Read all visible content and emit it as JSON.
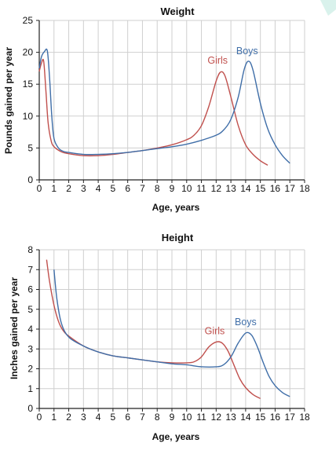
{
  "colors": {
    "girls": "#c0504d",
    "boys": "#3f6ea8",
    "grid": "#cfcfcf",
    "axis": "#222222",
    "accent_corner": "#d9f2ec"
  },
  "chart_data": [
    {
      "type": "line",
      "title": "Weight",
      "xlabel": "Age, years",
      "ylabel": "Pounds gained per year",
      "xlim": [
        0,
        18
      ],
      "ylim": [
        0,
        25
      ],
      "x_ticks": [
        "0",
        "1",
        "2",
        "3",
        "4",
        "5",
        "6",
        "7",
        "8",
        "9",
        "10",
        "11",
        "12",
        "13",
        "14",
        "15",
        "16",
        "17",
        "18"
      ],
      "y_ticks": [
        "0",
        "5",
        "10",
        "15",
        "20",
        "25"
      ],
      "y_tick_values": [
        0,
        5,
        10,
        15,
        20,
        25
      ],
      "grid": true,
      "series": [
        {
          "name": "Girls",
          "color": "#c0504d",
          "points": [
            [
              0,
              17
            ],
            [
              0.15,
              18.3
            ],
            [
              0.3,
              18.6
            ],
            [
              0.45,
              14
            ],
            [
              0.6,
              9
            ],
            [
              0.8,
              6.2
            ],
            [
              1,
              5.2
            ],
            [
              1.5,
              4.4
            ],
            [
              2,
              4.1
            ],
            [
              3,
              3.8
            ],
            [
              4,
              3.8
            ],
            [
              5,
              4
            ],
            [
              6,
              4.3
            ],
            [
              7,
              4.6
            ],
            [
              8,
              5
            ],
            [
              9,
              5.5
            ],
            [
              10,
              6.3
            ],
            [
              10.5,
              7
            ],
            [
              11,
              8.5
            ],
            [
              11.5,
              11.5
            ],
            [
              12,
              15.5
            ],
            [
              12.3,
              16.9
            ],
            [
              12.6,
              16.3
            ],
            [
              13,
              13
            ],
            [
              13.5,
              8.5
            ],
            [
              14,
              5.5
            ],
            [
              14.5,
              4
            ],
            [
              15,
              3
            ],
            [
              15.5,
              2.3
            ]
          ]
        },
        {
          "name": "Boys",
          "color": "#3f6ea8",
          "points": [
            [
              0,
              17.5
            ],
            [
              0.15,
              19.3
            ],
            [
              0.35,
              20.1
            ],
            [
              0.55,
              20.2
            ],
            [
              0.7,
              16
            ],
            [
              0.85,
              10
            ],
            [
              1,
              6.5
            ],
            [
              1.3,
              5
            ],
            [
              1.6,
              4.5
            ],
            [
              2,
              4.3
            ],
            [
              3,
              4
            ],
            [
              4,
              4
            ],
            [
              5,
              4.1
            ],
            [
              6,
              4.3
            ],
            [
              7,
              4.6
            ],
            [
              8,
              4.9
            ],
            [
              9,
              5.2
            ],
            [
              10,
              5.6
            ],
            [
              11,
              6.2
            ],
            [
              12,
              7
            ],
            [
              12.5,
              7.8
            ],
            [
              13,
              9.5
            ],
            [
              13.5,
              13
            ],
            [
              13.9,
              17.3
            ],
            [
              14.2,
              18.6
            ],
            [
              14.5,
              17.2
            ],
            [
              15,
              12
            ],
            [
              15.5,
              8
            ],
            [
              16,
              5.5
            ],
            [
              16.5,
              3.8
            ],
            [
              17,
              2.6
            ]
          ]
        }
      ],
      "annotations": [
        {
          "text": "Girls",
          "x": 12.1,
          "y": 18.2,
          "color": "#c0504d"
        },
        {
          "text": "Boys",
          "x": 14.1,
          "y": 19.7,
          "color": "#3f6ea8"
        }
      ]
    },
    {
      "type": "line",
      "title": "Height",
      "xlabel": "Age, years",
      "ylabel": "Inches gained per year",
      "xlim": [
        0,
        18
      ],
      "ylim": [
        0,
        8
      ],
      "x_ticks": [
        "0",
        "1",
        "2",
        "3",
        "4",
        "5",
        "6",
        "7",
        "8",
        "9",
        "10",
        "11",
        "12",
        "13",
        "14",
        "15",
        "16",
        "17",
        "18"
      ],
      "y_ticks": [
        "0",
        "1",
        "2",
        "3",
        "4",
        "5",
        "6",
        "7",
        "8"
      ],
      "y_tick_values": [
        0,
        1,
        2,
        3,
        4,
        5,
        6,
        7,
        8
      ],
      "grid": true,
      "series": [
        {
          "name": "Girls",
          "color": "#c0504d",
          "points": [
            [
              0.5,
              7.5
            ],
            [
              0.7,
              6.4
            ],
            [
              1,
              5.2
            ],
            [
              1.3,
              4.4
            ],
            [
              1.6,
              3.95
            ],
            [
              2,
              3.65
            ],
            [
              3,
              3.15
            ],
            [
              4,
              2.85
            ],
            [
              5,
              2.65
            ],
            [
              6,
              2.55
            ],
            [
              7,
              2.45
            ],
            [
              8,
              2.35
            ],
            [
              9,
              2.3
            ],
            [
              10,
              2.3
            ],
            [
              10.5,
              2.35
            ],
            [
              11,
              2.6
            ],
            [
              11.5,
              3.1
            ],
            [
              12,
              3.35
            ],
            [
              12.4,
              3.3
            ],
            [
              12.8,
              2.9
            ],
            [
              13.2,
              2.2
            ],
            [
              13.6,
              1.5
            ],
            [
              14,
              1.05
            ],
            [
              14.5,
              0.7
            ],
            [
              15,
              0.5
            ]
          ]
        },
        {
          "name": "Boys",
          "color": "#3f6ea8",
          "points": [
            [
              1,
              7
            ],
            [
              1.2,
              5.5
            ],
            [
              1.5,
              4.3
            ],
            [
              2,
              3.6
            ],
            [
              3,
              3.15
            ],
            [
              4,
              2.85
            ],
            [
              5,
              2.65
            ],
            [
              6,
              2.55
            ],
            [
              7,
              2.45
            ],
            [
              8,
              2.35
            ],
            [
              9,
              2.25
            ],
            [
              10,
              2.2
            ],
            [
              11,
              2.1
            ],
            [
              12,
              2.1
            ],
            [
              12.5,
              2.2
            ],
            [
              13,
              2.6
            ],
            [
              13.5,
              3.3
            ],
            [
              14,
              3.8
            ],
            [
              14.4,
              3.7
            ],
            [
              14.8,
              3.1
            ],
            [
              15.2,
              2.3
            ],
            [
              15.6,
              1.6
            ],
            [
              16,
              1.15
            ],
            [
              16.5,
              0.8
            ],
            [
              17,
              0.6
            ]
          ]
        }
      ],
      "annotations": [
        {
          "text": "Girls",
          "x": 11.9,
          "y": 3.75,
          "color": "#c0504d"
        },
        {
          "text": "Boys",
          "x": 14.0,
          "y": 4.2,
          "color": "#3f6ea8"
        }
      ]
    }
  ]
}
